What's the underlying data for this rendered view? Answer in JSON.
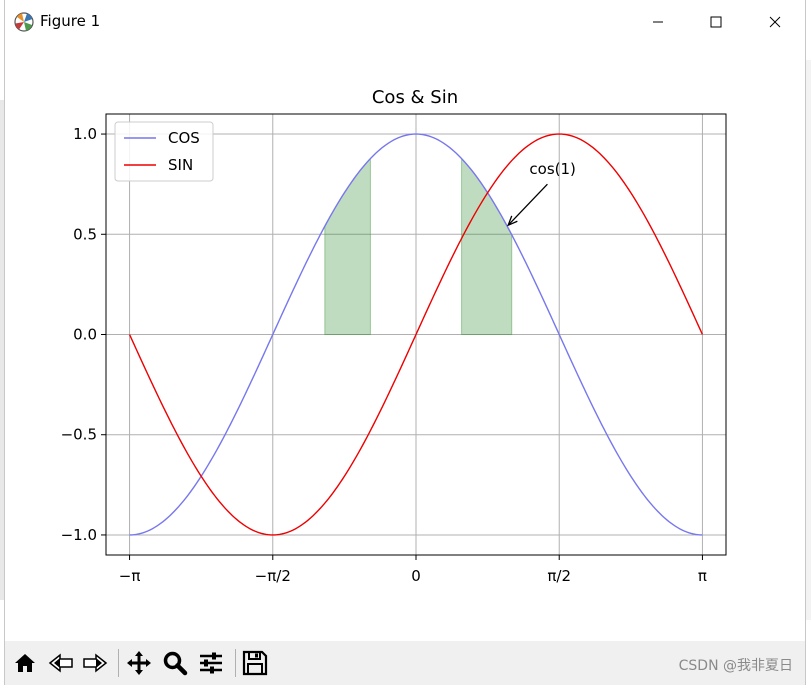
{
  "window": {
    "title": "Figure 1",
    "icon": "matplotlib-figure-icon",
    "controls": [
      "minimize-icon",
      "maximize-icon",
      "close-icon"
    ]
  },
  "chart_data": {
    "type": "line",
    "title": "Cos & Sin",
    "xlabel": "",
    "ylabel": "",
    "xlim": [
      -3.4,
      3.4
    ],
    "ylim": [
      -1.1,
      1.1
    ],
    "grid": true,
    "legend_placement": "upper-left",
    "x_ticks": [
      {
        "value": -3.14159,
        "label": "−π"
      },
      {
        "value": -1.5708,
        "label": "−π/2"
      },
      {
        "value": 0,
        "label": "0"
      },
      {
        "value": 1.5708,
        "label": "π/2"
      },
      {
        "value": 3.14159,
        "label": "π"
      }
    ],
    "y_ticks": [
      {
        "value": -1.0,
        "label": "−1.0"
      },
      {
        "value": -0.5,
        "label": "−0.5"
      },
      {
        "value": 0.0,
        "label": "0.0"
      },
      {
        "value": 0.5,
        "label": "0.5"
      },
      {
        "value": 1.0,
        "label": "1.0"
      }
    ],
    "x_range": [
      -3.14159,
      3.14159
    ],
    "series": [
      {
        "name": "COS",
        "function": "cos",
        "color": "#7777ee"
      },
      {
        "name": "SIN",
        "function": "sin",
        "color": "#ee0000"
      }
    ],
    "fill_regions": [
      {
        "x_from": -1.0,
        "x_to": -0.5,
        "color": "#2e8b2e",
        "opacity": 0.3
      },
      {
        "x_from": 0.5,
        "x_to": 1.05,
        "color": "#2e8b2e",
        "opacity": 0.3
      }
    ],
    "annotation": {
      "text": "cos(1)",
      "point": [
        1.0,
        0.5403
      ],
      "text_pos": [
        1.2,
        0.78
      ]
    }
  },
  "toolbar": {
    "tools": [
      "home-icon",
      "back-icon",
      "forward-icon",
      "pan-icon",
      "zoom-icon",
      "configure-subplots-icon",
      "save-icon"
    ],
    "watermark": "CSDN @我非夏日"
  }
}
